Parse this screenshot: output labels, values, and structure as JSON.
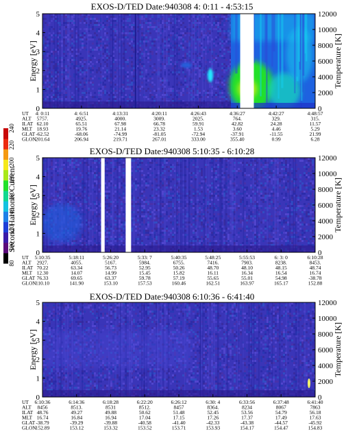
{
  "colorbar": {
    "label": "Second Harmonic Current",
    "ticks": [
      80,
      100,
      120,
      140,
      160,
      180,
      200,
      220,
      240
    ],
    "min": 80,
    "max": 240
  },
  "chart_data": [
    {
      "type": "heatmap",
      "title": "EXOS-D/TED   Date:940308   4: 0:11 - 4:53:15",
      "ylabel": "Energy [eV]",
      "y2label": "Temperature [K]",
      "ylim": [
        0,
        5
      ],
      "yticks": [
        0,
        1,
        2,
        3,
        4,
        5
      ],
      "y2lim": [
        0,
        12000
      ],
      "y2ticks": [
        0,
        2000,
        4000,
        6000,
        8000,
        10000,
        12000
      ],
      "columns": [
        "4: 0:11",
        "4: 6:51",
        "4:13:31",
        "4:20:11",
        "4:26:43",
        "4:36:27",
        "4:42:27",
        "4:48:57"
      ],
      "rows": [
        {
          "name": "UT",
          "values": [
            "4: 0:11",
            "4: 6:51",
            "4:13:31",
            "4:20:11",
            "4:26:43",
            "4:36:27",
            "4:42:27",
            "4:48:57"
          ]
        },
        {
          "name": "ALT",
          "values": [
            "5757.",
            "4925.",
            "4000.",
            "3009.",
            "2025.",
            "764.",
            "329.",
            "315."
          ]
        },
        {
          "name": "ILAT",
          "values": [
            "62.10",
            "65.51",
            "67.98",
            "66.78",
            "59.91",
            "42.82",
            "24.28",
            "11.57"
          ]
        },
        {
          "name": "MLT",
          "values": [
            "18.93",
            "19.76",
            "21.14",
            "23.32",
            "1.53",
            "3.60",
            "4.46",
            "5.29"
          ]
        },
        {
          "name": "GLAT",
          "values": [
            "-62.52",
            "-68.06",
            "-74.99",
            "-81.05",
            "-72.94",
            "-37.91",
            "-11.55",
            "21.99"
          ]
        },
        {
          "name": "GLON",
          "values": [
            "201.64",
            "206.94",
            "219.71",
            "267.01",
            "333.00",
            "355.40",
            "0.99",
            "6.28"
          ]
        }
      ],
      "gaps": [
        [
          0.725,
          0.775
        ]
      ]
    },
    {
      "type": "heatmap",
      "title": "EXOS-D/TED   Date:940308   5:10:35 - 6:10:28",
      "ylabel": "Energy [eV]",
      "y2label": "Temperature [K]",
      "ylim": [
        0,
        5
      ],
      "yticks": [
        0,
        1,
        2,
        3,
        4,
        5
      ],
      "y2lim": [
        0,
        12000
      ],
      "y2ticks": [
        0,
        2000,
        4000,
        6000,
        8000,
        10000,
        12000
      ],
      "columns": [
        "5:10:35",
        "5:18:11",
        "5:26:20",
        "5:33: 7",
        "5:40:35",
        "5:48:25",
        "5:55:53",
        "6: 3: 0",
        "6:10:28"
      ],
      "rows": [
        {
          "name": "UT",
          "values": [
            "5:10:35",
            "5:18:11",
            "5:26:20",
            "5:33: 7",
            "5:40:35",
            "5:48:25",
            "5:55:53",
            "6: 3: 0",
            "6:10:28"
          ]
        },
        {
          "name": "ALT",
          "values": [
            "2927.",
            "4055.",
            "5167.",
            "5984.",
            "6755.",
            "7416.",
            "7903.",
            "8238.",
            "8453."
          ]
        },
        {
          "name": "ILAT",
          "values": [
            "70.22",
            "63.34",
            "56.73",
            "52.95",
            "50.26",
            "48.70",
            "48.10",
            "48.15",
            "48.74"
          ]
        },
        {
          "name": "MLT",
          "values": [
            "12.30",
            "14.07",
            "14.99",
            "15.45",
            "15.82",
            "16.11",
            "16.34",
            "16.54",
            "16.74"
          ]
        },
        {
          "name": "GLAT",
          "values": [
            "76.33",
            "69.65",
            "63.37",
            "59.78",
            "57.19",
            "55.65",
            "55.01",
            "54.98",
            "-38.78"
          ]
        },
        {
          "name": "GLON",
          "values": [
            "110.10",
            "141.90",
            "153.10",
            "157.53",
            "160.46",
            "162.51",
            "163.97",
            "165.17",
            "152.88"
          ]
        }
      ],
      "gaps": [
        [
          0.215,
          0.228
        ],
        [
          0.305,
          0.325
        ]
      ]
    },
    {
      "type": "heatmap",
      "title": "EXOS-D/TED   Date:940308   6:10:36 - 6:41:40",
      "ylabel": "Energy [eV]",
      "y2label": "Temperature [K]",
      "ylim": [
        0,
        5
      ],
      "yticks": [
        0,
        1,
        2,
        3,
        4,
        5
      ],
      "y2lim": [
        0,
        12000
      ],
      "y2ticks": [
        0,
        2000,
        4000,
        6000,
        8000,
        10000,
        12000
      ],
      "columns": [
        "6:10:36",
        "6:14:36",
        "6:18:28",
        "6:22:20",
        "6:26:12",
        "6:30: 4",
        "6:33:56",
        "6:37:48",
        "6:41:40"
      ],
      "rows": [
        {
          "name": "UT",
          "values": [
            "6:10:36",
            "6:14:36",
            "6:18:28",
            "6:22:20",
            "6:26:12",
            "6:30: 4",
            "6:33:56",
            "6:37:48",
            "6:41:40"
          ]
        },
        {
          "name": "ALT",
          "values": [
            "8456",
            "8513.",
            "8531",
            "8512.",
            "8457",
            "8364.",
            "8234",
            "8067",
            "7863"
          ]
        },
        {
          "name": "ILAT",
          "values": [
            "48.76",
            "49.27",
            "49.88",
            "50.62",
            "51.48",
            "52.45",
            "53.56",
            "54.79",
            "56.18"
          ]
        },
        {
          "name": "MLT",
          "values": [
            "16.74",
            "16.84",
            "16.94",
            "17.04",
            "17.15",
            "17.26",
            "17.37",
            "17.49",
            "17.63"
          ]
        },
        {
          "name": "GLAT",
          "values": [
            "-38.79",
            "-39.29",
            "-39.88",
            "-40.58",
            "-41.40",
            "-42.33",
            "-43.38",
            "-44.57",
            "-45.92"
          ]
        },
        {
          "name": "GLON",
          "values": [
            "152.89",
            "153.12",
            "153.32",
            "153.52",
            "153.71",
            "153.93",
            "154.17",
            "154.47",
            "154.83"
          ]
        }
      ],
      "gaps": []
    }
  ]
}
